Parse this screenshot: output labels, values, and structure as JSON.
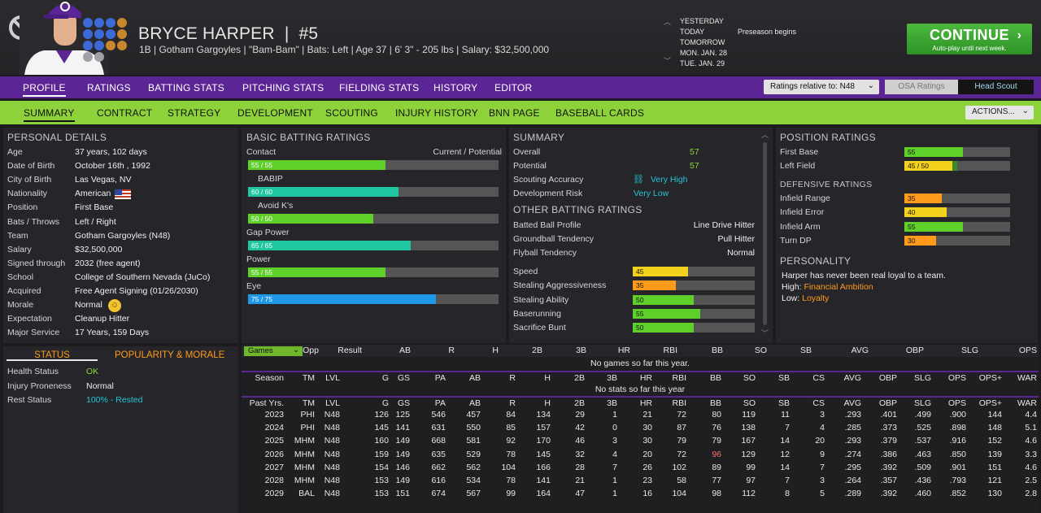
{
  "header": {
    "name": "BRYCE HARPER",
    "separator": "|",
    "number": "#5",
    "info": "1B | Gotham Gargoyles | \"Bam-Bam\" | Bats: Left | Age 37 | 6' 3\" - 205 lbs | Salary: $32,500,000"
  },
  "calendar": {
    "days": [
      "YESTERDAY",
      "TODAY",
      "TOMORROW",
      "MON. JAN. 28",
      "TUE. JAN. 29"
    ],
    "note": "Preseason begins"
  },
  "continue": {
    "label": "CONTINUE",
    "sub": "Auto-play until next week.",
    "arrow": "›"
  },
  "nav1": {
    "items": [
      "PROFILE",
      "RATINGS",
      "BATTING STATS",
      "PITCHING STATS",
      "FIELDING STATS",
      "HISTORY",
      "EDITOR"
    ],
    "relative": "Ratings relative to: N48",
    "osa": "OSA Ratings",
    "scout": "Head Scout"
  },
  "nav2": {
    "items": [
      "SUMMARY",
      "CONTRACT",
      "STRATEGY",
      "DEVELOPMENT",
      "SCOUTING",
      "INJURY HISTORY",
      "BNN PAGE",
      "BASEBALL CARDS"
    ],
    "actions": "ACTIONS..."
  },
  "personal": {
    "title": "PERSONAL DETAILS",
    "rows": [
      [
        "Age",
        "37 years, 102 days"
      ],
      [
        "Date of Birth",
        "October 16th , 1992"
      ],
      [
        "City of Birth",
        "Las Vegas, NV"
      ],
      [
        "Nationality",
        "American"
      ],
      [
        "Position",
        "First Base"
      ],
      [
        "Bats / Throws",
        "Left / Right"
      ],
      [
        "Team",
        "Gotham Gargoyles (N48)"
      ],
      [
        "Salary",
        "$32,500,000"
      ],
      [
        "Signed through",
        "2032 (free agent)"
      ],
      [
        "School",
        "College of Southern Nevada (JuCo)"
      ],
      [
        "Acquired",
        "Free Agent Signing (01/26/2030)"
      ],
      [
        "Morale",
        "Normal"
      ],
      [
        "Expectation",
        "Cleanup Hitter"
      ],
      [
        "Major Service",
        "17 Years, 159 Days"
      ]
    ]
  },
  "status": {
    "tab1": "STATUS",
    "tab2": "POPULARITY & MORALE",
    "rows": [
      [
        "Health Status",
        "OK"
      ],
      [
        "Injury Proneness",
        "Normal"
      ],
      [
        "Rest Status",
        "100% - Rested"
      ]
    ]
  },
  "batting": {
    "title": "BASIC BATTING RATINGS",
    "col": "Current / Potential",
    "rows": [
      {
        "label": "Contact",
        "text": "55 / 55",
        "v": 55,
        "color": "#5fcf2a"
      },
      {
        "label": "BABIP",
        "text": "60 / 60",
        "v": 60,
        "color": "#1fc6a0"
      },
      {
        "label": "Avoid K's",
        "text": "50 / 50",
        "v": 50,
        "color": "#5fcf2a"
      },
      {
        "label": "Gap Power",
        "text": "65 / 65",
        "v": 65,
        "color": "#1fc6a0"
      },
      {
        "label": "Power",
        "text": "55 / 55",
        "v": 55,
        "color": "#5fcf2a"
      },
      {
        "label": "Eye",
        "text": "75 / 75",
        "v": 75,
        "color": "#1f98e8"
      }
    ]
  },
  "summary": {
    "title": "SUMMARY",
    "rows": [
      [
        "Overall",
        "57"
      ],
      [
        "Potential",
        "57"
      ],
      [
        "Scouting Accuracy",
        "Very High"
      ],
      [
        "Development Risk",
        "Very Low"
      ]
    ],
    "other_title": "OTHER BATTING RATINGS",
    "other": [
      [
        "Batted Ball Profile",
        "Line Drive Hitter"
      ],
      [
        "Groundball Tendency",
        "Pull Hitter"
      ],
      [
        "Flyball Tendency",
        "Normal"
      ]
    ],
    "bars": [
      {
        "label": "Speed",
        "v": 45,
        "color": "#f2d21c"
      },
      {
        "label": "Stealing Aggressiveness",
        "v": 35,
        "color": "#ff9b1a"
      },
      {
        "label": "Stealing Ability",
        "v": 50,
        "color": "#5fcf2a"
      },
      {
        "label": "Baserunning",
        "v": 55,
        "color": "#5fcf2a"
      },
      {
        "label": "Sacrifice Bunt",
        "v": 50,
        "color": "#5fcf2a"
      }
    ]
  },
  "position": {
    "title": "POSITION RATINGS",
    "rows": [
      {
        "label": "First Base",
        "text": "55",
        "v": 55,
        "color": "#5fcf2a"
      },
      {
        "label": "Left Field",
        "text": "45 / 50",
        "v": 45,
        "color": "#f2d21c",
        "pot": 50
      }
    ],
    "def_title": "DEFENSIVE RATINGS",
    "def": [
      {
        "label": "Infield Range",
        "text": "35",
        "v": 35,
        "color": "#ff9b1a"
      },
      {
        "label": "Infield Error",
        "text": "40",
        "v": 40,
        "color": "#f2d21c"
      },
      {
        "label": "Infield Arm",
        "text": "55",
        "v": 55,
        "color": "#5fcf2a"
      },
      {
        "label": "Turn DP",
        "text": "30",
        "v": 30,
        "color": "#ff9b1a"
      }
    ]
  },
  "personality": {
    "title": "PERSONALITY",
    "line": "Harper has never been real loyal to a team.",
    "high_label": "High:",
    "high": "Financial Ambition",
    "low_label": "Low:",
    "low": "Loyalty"
  },
  "games": {
    "select": "Games",
    "cols": [
      "Opp",
      "Result",
      "AB",
      "R",
      "H",
      "2B",
      "3B",
      "HR",
      "RBI",
      "BB",
      "SO",
      "SB",
      "AVG",
      "OBP",
      "SLG",
      "OPS"
    ],
    "empty": "No games so far this year."
  },
  "season": {
    "cols": [
      "Season",
      "TM",
      "LVL",
      "G",
      "GS",
      "PA",
      "AB",
      "R",
      "H",
      "2B",
      "3B",
      "HR",
      "RBI",
      "BB",
      "SO",
      "SB",
      "CS",
      "AVG",
      "OBP",
      "SLG",
      "OPS",
      "OPS+",
      "WAR"
    ],
    "empty": "No stats so far this year"
  },
  "past": {
    "cols": [
      "Past Yrs.",
      "TM",
      "LVL",
      "G",
      "GS",
      "PA",
      "AB",
      "R",
      "H",
      "2B",
      "3B",
      "HR",
      "RBI",
      "BB",
      "SO",
      "SB",
      "CS",
      "AVG",
      "OBP",
      "SLG",
      "OPS",
      "OPS+",
      "WAR"
    ],
    "rows": [
      [
        "2023",
        "PHI",
        "N48",
        "126",
        "125",
        "546",
        "457",
        "84",
        "134",
        "29",
        "1",
        "21",
        "72",
        "80",
        "119",
        "11",
        "3",
        ".293",
        ".401",
        ".499",
        ".900",
        "144",
        "4.4"
      ],
      [
        "2024",
        "PHI",
        "N48",
        "145",
        "141",
        "631",
        "550",
        "85",
        "157",
        "42",
        "0",
        "30",
        "87",
        "76",
        "138",
        "7",
        "4",
        ".285",
        ".373",
        ".525",
        ".898",
        "148",
        "5.1"
      ],
      [
        "2025",
        "MHM",
        "N48",
        "160",
        "149",
        "668",
        "581",
        "92",
        "170",
        "46",
        "3",
        "30",
        "79",
        "79",
        "167",
        "14",
        "20",
        ".293",
        ".379",
        ".537",
        ".916",
        "152",
        "4.6"
      ],
      [
        "2026",
        "MHM",
        "N48",
        "159",
        "149",
        "635",
        "529",
        "78",
        "145",
        "32",
        "4",
        "20",
        "72",
        "96",
        "129",
        "12",
        "9",
        ".274",
        ".386",
        ".463",
        ".850",
        "139",
        "3.3"
      ],
      [
        "2027",
        "MHM",
        "N48",
        "154",
        "146",
        "662",
        "562",
        "104",
        "166",
        "28",
        "7",
        "26",
        "102",
        "89",
        "99",
        "14",
        "7",
        ".295",
        ".392",
        ".509",
        ".901",
        "151",
        "4.6"
      ],
      [
        "2028",
        "MHM",
        "N48",
        "153",
        "149",
        "616",
        "534",
        "78",
        "141",
        "21",
        "1",
        "23",
        "58",
        "77",
        "97",
        "7",
        "3",
        ".264",
        ".357",
        ".436",
        ".793",
        "121",
        "2.5"
      ],
      [
        "2029",
        "BAL",
        "N48",
        "153",
        "151",
        "674",
        "567",
        "99",
        "164",
        "47",
        "1",
        "16",
        "104",
        "98",
        "112",
        "8",
        "5",
        ".289",
        ".392",
        ".460",
        ".852",
        "130",
        "2.8"
      ]
    ]
  }
}
